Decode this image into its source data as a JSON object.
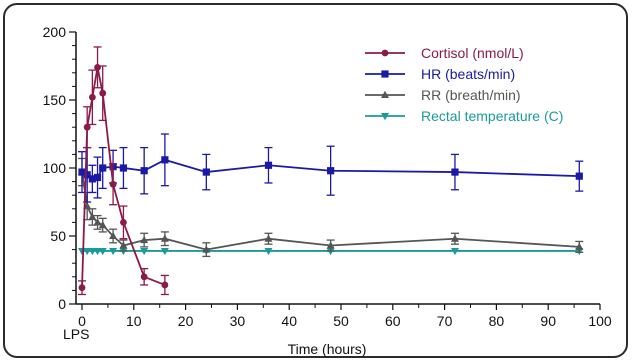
{
  "chart_data": {
    "type": "line",
    "xlabel": "Time (hours)",
    "x_annotation": "LPS",
    "xlim": [
      0,
      100
    ],
    "ylim": [
      0,
      200
    ],
    "xticks": [
      0,
      10,
      20,
      30,
      40,
      50,
      60,
      70,
      80,
      90,
      100
    ],
    "yticks": [
      0,
      50,
      100,
      150,
      200
    ],
    "legend_position": "top-right",
    "series": [
      {
        "name": "Cortisol (nmol/L)",
        "color": "#8b1a4a",
        "marker": "circle",
        "x": [
          0,
          1,
          2,
          3,
          4,
          6,
          8,
          12,
          16
        ],
        "y": [
          12,
          130,
          152,
          174,
          155,
          88,
          60,
          20,
          14
        ],
        "err": [
          5,
          15,
          20,
          15,
          20,
          15,
          12,
          6,
          7
        ]
      },
      {
        "name": "HR (beats/min)",
        "color": "#1a1aa6",
        "marker": "square",
        "x": [
          0,
          1,
          2,
          3,
          4,
          6,
          8,
          12,
          16,
          24,
          36,
          48,
          72,
          96
        ],
        "y": [
          97,
          95,
          92,
          93,
          100,
          101,
          100,
          98,
          106,
          97,
          102,
          98,
          97,
          94
        ],
        "err": [
          15,
          20,
          10,
          15,
          15,
          12,
          15,
          17,
          19,
          13,
          13,
          18,
          13,
          11
        ]
      },
      {
        "name": "RR (breath/min)",
        "color": "#555555",
        "marker": "triangle-up",
        "x": [
          0,
          1,
          2,
          3,
          4,
          6,
          8,
          12,
          16,
          24,
          36,
          48,
          72,
          96
        ],
        "y": [
          97,
          72,
          64,
          60,
          58,
          50,
          43,
          47,
          48,
          40,
          48,
          43,
          48,
          42
        ],
        "err": [
          10,
          10,
          6,
          5,
          5,
          5,
          4,
          5,
          5,
          5,
          4,
          4,
          4,
          4
        ]
      },
      {
        "name": "Rectal temperature (C)",
        "color": "#1a9a9a",
        "marker": "triangle-down",
        "x": [
          0,
          1,
          2,
          3,
          4,
          6,
          8,
          12,
          16,
          24,
          36,
          48,
          72,
          96
        ],
        "y": [
          39,
          39,
          39,
          39,
          39,
          39,
          39,
          39,
          39,
          39,
          39,
          39,
          39,
          39
        ],
        "err": [
          0,
          0,
          0,
          0,
          0,
          0,
          0,
          0,
          0,
          0,
          0,
          0,
          0,
          0
        ]
      }
    ]
  }
}
